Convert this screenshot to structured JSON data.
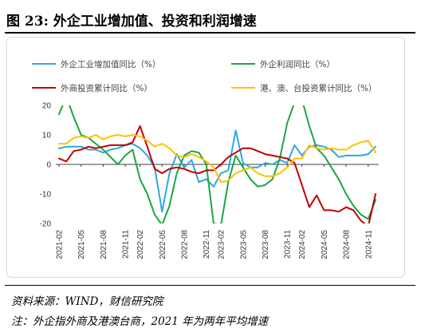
{
  "figure": {
    "title": "图 23:  外企工业增加值、投资和利润增速",
    "source": "资料来源：WIND，财信研究院",
    "note": "注：外企指外商及港澳台商，2021 年为两年平均增速"
  },
  "chart_data": {
    "type": "line",
    "title": "",
    "xlabel": "",
    "ylabel": "",
    "ylim": [
      -20,
      20
    ],
    "yticks": [
      -20,
      -10,
      0,
      10,
      20
    ],
    "grid": false,
    "legend_position": "top",
    "x_tick_labels": [
      "2021-02",
      "2021-05",
      "2021-08",
      "2021-11",
      "2022-02",
      "2022-05",
      "2022-08",
      "2022-11",
      "2023-02",
      "2023-05",
      "2023-08",
      "2023-11",
      "2024-02",
      "2024-05",
      "2024-08",
      "2024-11"
    ],
    "x": [
      "2021-02",
      "2021-03",
      "2021-04",
      "2021-05",
      "2021-06",
      "2021-07",
      "2021-08",
      "2021-09",
      "2021-10",
      "2021-11",
      "2021-12",
      "2022-02",
      "2022-03",
      "2022-04",
      "2022-05",
      "2022-06",
      "2022-07",
      "2022-08",
      "2022-09",
      "2022-10",
      "2022-11",
      "2022-12",
      "2023-02",
      "2023-03",
      "2023-04",
      "2023-05",
      "2023-06",
      "2023-07",
      "2023-08",
      "2023-09",
      "2023-10",
      "2023-11",
      "2023-12",
      "2024-02",
      "2024-03",
      "2024-04",
      "2024-05",
      "2024-06",
      "2024-07",
      "2024-08",
      "2024-09",
      "2024-10",
      "2024-11",
      "2024-12"
    ],
    "series": [
      {
        "name": "外企工业增加值同比（%）",
        "color": "#2ea7e0",
        "values": [
          5.4,
          6.0,
          6.0,
          6.0,
          5.0,
          5.0,
          4.0,
          5.0,
          5.5,
          6.5,
          7.0,
          5.5,
          3.0,
          -1.0,
          -16.0,
          -3.0,
          3.5,
          -1.0,
          1.5,
          -6.0,
          -5.0,
          -7.5,
          -3.0,
          -2.0,
          11.5,
          0.5,
          -1.0,
          -1.0,
          0.5,
          0.0,
          1.5,
          0.5,
          6.5,
          3.0,
          6.0,
          6.5,
          6.0,
          5.0,
          2.5,
          3.0,
          3.0,
          3.0,
          3.5,
          6.0
        ]
      },
      {
        "name": "外企利润同比（%）",
        "color": "#1aa640",
        "values": [
          17.0,
          23.0,
          16.0,
          10.0,
          9.0,
          7.0,
          5.0,
          2.5,
          0.0,
          3.0,
          5.0,
          -5.0,
          -10.0,
          -17.0,
          -20.5,
          -14.0,
          -3.0,
          3.0,
          4.5,
          4.0,
          0.0,
          -20.0,
          -20.5,
          -6.0,
          3.0,
          -1.0,
          -5.0,
          -7.5,
          -7.0,
          -5.0,
          2.0,
          14.0,
          21.0,
          22.0,
          13.0,
          5.5,
          3.0,
          -1.0,
          -5.0,
          -10.0,
          -14.0,
          -17.0,
          -18.5,
          -12.0
        ]
      },
      {
        "name": "外商投资累计同比（%）",
        "color": "#c00000",
        "values": [
          2.0,
          1.0,
          4.5,
          5.0,
          6.0,
          5.5,
          6.0,
          6.5,
          6.5,
          6.5,
          7.5,
          13.0,
          6.0,
          -1.5,
          -3.0,
          -1.5,
          -1.0,
          -1.5,
          -2.5,
          -3.0,
          -2.0,
          -2.0,
          0.0,
          2.5,
          4.0,
          5.5,
          5.5,
          4.5,
          3.5,
          3.0,
          2.5,
          2.0,
          0.5,
          -7.0,
          -14.5,
          -10.5,
          -15.5,
          -15.5,
          -16.0,
          -14.5,
          -15.5,
          -19.0,
          -21.0,
          -10.0
        ]
      },
      {
        "name": "港、澳、台投资累计同比（%）",
        "color": "#ffc000",
        "values": [
          7.0,
          7.0,
          9.0,
          9.5,
          9.0,
          10.0,
          8.5,
          9.5,
          10.0,
          9.5,
          10.0,
          9.5,
          8.0,
          6.0,
          7.0,
          5.5,
          3.0,
          2.5,
          3.5,
          2.5,
          1.0,
          -1.0,
          -6.0,
          -5.5,
          -3.0,
          -2.0,
          -1.0,
          -3.0,
          -4.0,
          -4.0,
          -3.0,
          -1.0,
          2.0,
          2.0,
          6.5,
          5.5,
          5.0,
          5.5,
          5.0,
          5.0,
          6.5,
          7.5,
          8.0,
          4.0
        ]
      }
    ]
  }
}
